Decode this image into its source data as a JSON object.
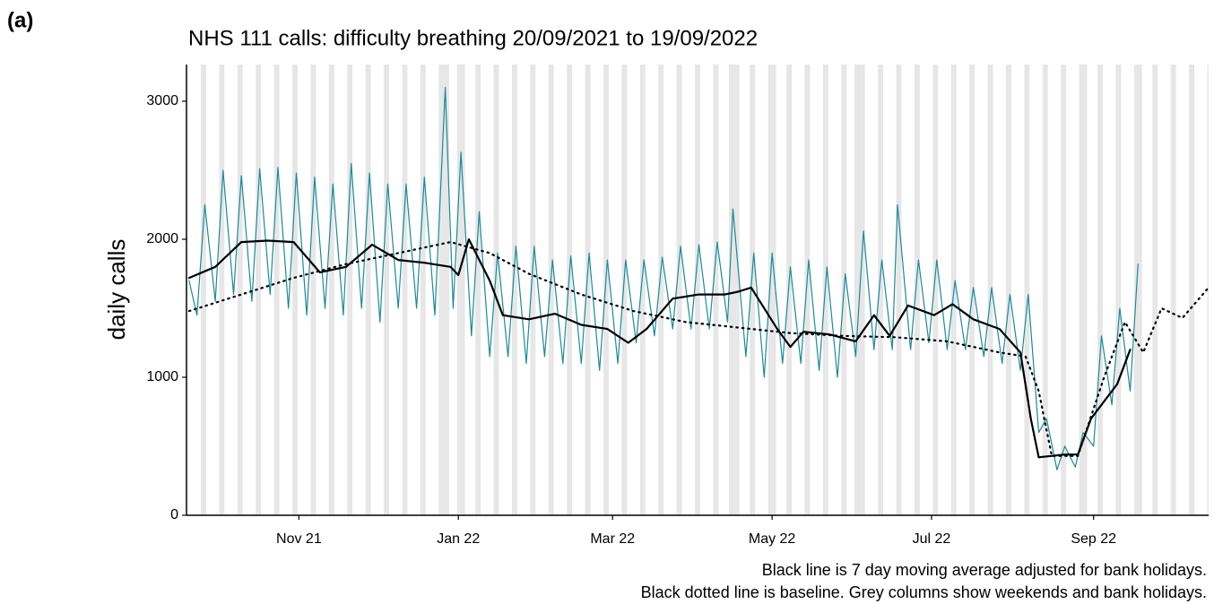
{
  "panel_label": "(a)",
  "chart_data": {
    "type": "line",
    "title": "NHS 111 calls: difficulty breathing 20/09/2021 to 19/09/2022",
    "y_label": "daily calls",
    "caption": [
      "Black line is 7 day moving average adjusted for bank holidays.",
      "Black dotted line is baseline. Grey columns show weekends and bank holidays."
    ],
    "xlim": [
      -1,
      390
    ],
    "xticks": [
      {
        "value": 42,
        "label": "Nov 21"
      },
      {
        "value": 103,
        "label": "Jan 22"
      },
      {
        "value": 162,
        "label": "Mar 22"
      },
      {
        "value": 223,
        "label": "May 22"
      },
      {
        "value": 284,
        "label": "Jul 22"
      },
      {
        "value": 346,
        "label": "Sep 22"
      }
    ],
    "ylim": [
      0,
      3266
    ],
    "yticks": [
      0,
      1000,
      2000,
      3000
    ],
    "shaded_days": [
      5,
      6,
      12,
      13,
      19,
      20,
      26,
      27,
      33,
      34,
      40,
      41,
      47,
      48,
      54,
      55,
      61,
      62,
      68,
      69,
      75,
      76,
      82,
      83,
      89,
      90,
      96,
      97,
      98,
      99,
      103,
      104,
      105,
      110,
      111,
      117,
      118,
      124,
      125,
      131,
      132,
      138,
      139,
      145,
      146,
      152,
      153,
      159,
      160,
      166,
      167,
      173,
      174,
      180,
      181,
      187,
      188,
      194,
      195,
      201,
      202,
      207,
      208,
      209,
      210,
      215,
      216,
      222,
      223,
      224,
      229,
      230,
      236,
      237,
      243,
      244,
      250,
      251,
      255,
      256,
      257,
      258,
      264,
      265,
      271,
      272,
      278,
      279,
      285,
      286,
      292,
      293,
      299,
      300,
      306,
      307,
      313,
      314,
      320,
      321,
      327,
      328,
      334,
      335,
      341,
      342,
      343,
      348,
      349,
      355,
      356,
      362,
      363,
      364,
      369,
      370,
      376,
      377,
      383,
      384,
      390
    ],
    "shade_color": "#e6e6e6",
    "series": [
      {
        "color": "#1a8a9a",
        "style": "solid",
        "width": 1.2,
        "x": [
          0,
          3,
          6,
          10,
          13,
          17,
          20,
          24,
          27,
          31,
          34,
          38,
          41,
          45,
          48,
          52,
          55,
          59,
          62,
          66,
          69,
          73,
          76,
          80,
          83,
          87,
          90,
          94,
          98,
          101,
          104,
          108,
          111,
          115,
          118,
          122,
          125,
          129,
          132,
          136,
          139,
          143,
          146,
          150,
          153,
          157,
          160,
          164,
          167,
          171,
          174,
          178,
          181,
          185,
          188,
          192,
          195,
          199,
          202,
          206,
          208,
          213,
          216,
          220,
          223,
          227,
          230,
          234,
          237,
          241,
          244,
          248,
          251,
          255,
          258,
          262,
          265,
          269,
          271,
          276,
          279,
          283,
          286,
          290,
          293,
          297,
          300,
          304,
          307,
          311,
          314,
          318,
          321,
          325,
          328,
          332,
          335,
          339,
          342,
          346,
          349,
          353,
          356,
          360,
          363
        ],
        "values": [
          1700,
          1450,
          2250,
          1550,
          2500,
          1600,
          2460,
          1550,
          2510,
          1600,
          2520,
          1500,
          2480,
          1450,
          2450,
          1500,
          2400,
          1450,
          2550,
          1500,
          2480,
          1400,
          2400,
          1500,
          2400,
          1500,
          2450,
          1450,
          3100,
          1500,
          2630,
          1300,
          2200,
          1150,
          1900,
          1150,
          1950,
          1100,
          1950,
          1150,
          1850,
          1100,
          1880,
          1100,
          1900,
          1050,
          1850,
          1100,
          1850,
          1250,
          1850,
          1300,
          1870,
          1350,
          1950,
          1350,
          1960,
          1350,
          1980,
          1400,
          2220,
          1150,
          1900,
          1000,
          1900,
          1100,
          1800,
          1100,
          1850,
          1050,
          1800,
          1000,
          1750,
          1150,
          2060,
          1200,
          1850,
          1200,
          2250,
          1200,
          1850,
          1250,
          1850,
          1200,
          1700,
          1200,
          1650,
          1150,
          1650,
          1100,
          1600,
          1050,
          1600,
          600,
          700,
          330,
          500,
          350,
          600,
          500,
          1300,
          800,
          1500,
          900,
          1820
        ]
      },
      {
        "color": "#000000",
        "style": "solid",
        "width": 2.2,
        "x": [
          0,
          10,
          20,
          30,
          40,
          50,
          60,
          70,
          80,
          90,
          100,
          103,
          107,
          115,
          120,
          130,
          140,
          150,
          160,
          168,
          175,
          185,
          195,
          205,
          210,
          215,
          225,
          230,
          235,
          245,
          255,
          262,
          268,
          275,
          285,
          292,
          300,
          310,
          318,
          322,
          325,
          335,
          340,
          345,
          355,
          360
        ],
        "values": [
          1720,
          1800,
          1980,
          1990,
          1980,
          1760,
          1800,
          1960,
          1850,
          1830,
          1800,
          1740,
          2000,
          1700,
          1450,
          1420,
          1460,
          1380,
          1350,
          1250,
          1350,
          1570,
          1600,
          1600,
          1620,
          1650,
          1350,
          1220,
          1330,
          1310,
          1260,
          1450,
          1300,
          1520,
          1450,
          1530,
          1420,
          1350,
          1180,
          700,
          420,
          440,
          440,
          700,
          950,
          1200
        ]
      },
      {
        "color": "#000000",
        "style": "dotted",
        "width": 2.2,
        "x": [
          0,
          20,
          40,
          60,
          80,
          100,
          115,
          130,
          150,
          170,
          190,
          210,
          230,
          250,
          270,
          290,
          310,
          320,
          325,
          330,
          340,
          350,
          358,
          365,
          372,
          380,
          390
        ],
        "values": [
          1480,
          1600,
          1720,
          1820,
          1900,
          1980,
          1900,
          1750,
          1600,
          1480,
          1400,
          1360,
          1320,
          1300,
          1290,
          1260,
          1180,
          1150,
          900,
          430,
          430,
          1000,
          1400,
          1180,
          1500,
          1430,
          1650
        ]
      }
    ]
  }
}
